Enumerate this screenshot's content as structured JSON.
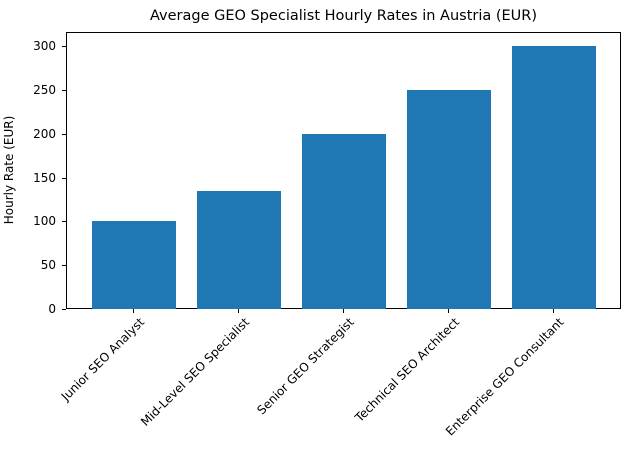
{
  "chart_data": {
    "type": "bar",
    "title": "Average GEO Specialist Hourly Rates in Austria (EUR)",
    "xlabel": "",
    "ylabel": "Hourly Rate (EUR)",
    "categories": [
      "Junior SEO Analyst",
      "Mid-Level SEO Specialist",
      "Senior GEO Strategist",
      "Technical SEO Architect",
      "Enterprise GEO Consultant"
    ],
    "values": [
      100,
      135,
      200,
      250,
      300
    ],
    "ylim": [
      0,
      315
    ],
    "yticks": [
      0,
      50,
      100,
      150,
      200,
      250,
      300
    ],
    "grid": false,
    "legend": null,
    "bar_color": "#1f77b4",
    "xtick_rotation": -45
  }
}
